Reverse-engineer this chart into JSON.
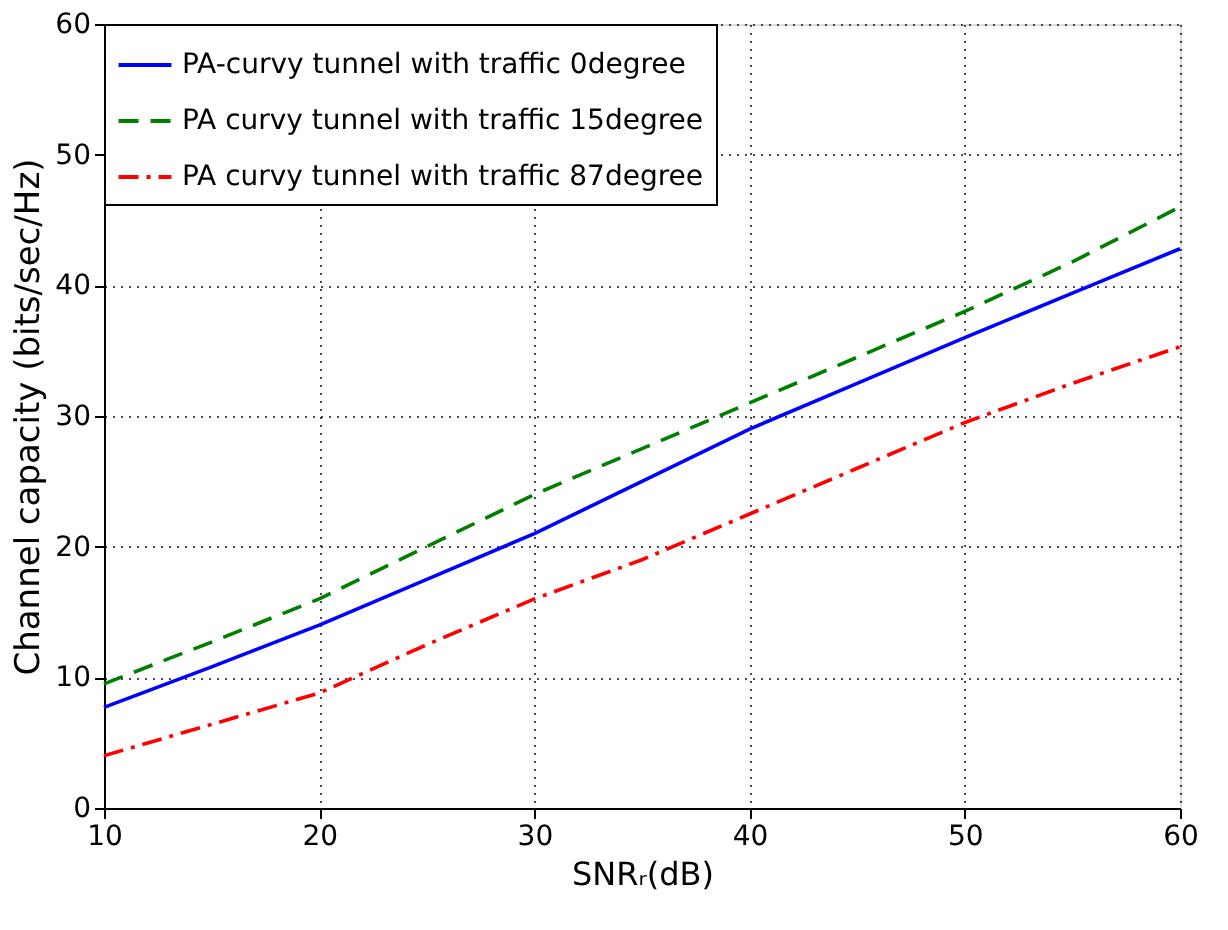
{
  "chart_data": {
    "type": "line",
    "xlabel": "SNRᵣ(dB)",
    "ylabel": "Channel capacity (bits/sec/Hz)",
    "x": [
      10,
      15,
      20,
      25,
      30,
      35,
      40,
      45,
      50,
      55,
      60
    ],
    "series": [
      {
        "name": "PA-curvy tunnel with traffic   0degree",
        "color": "#0000ff",
        "line_style": "solid",
        "values": [
          7.7,
          10.8,
          14,
          17.5,
          21,
          25,
          29,
          32.5,
          36,
          39.4,
          42.8
        ]
      },
      {
        "name": "PA curvy tunnel with traffic 15degree",
        "color": "#007f00",
        "line_style": "dashed",
        "values": [
          9.5,
          12.7,
          16,
          20,
          24,
          27.5,
          31,
          34.5,
          38,
          41.8,
          46
        ]
      },
      {
        "name": "PA curvy tunnel with traffic 87degree",
        "color": "#ff0000",
        "line_style": "dashdot",
        "values": [
          4,
          6.4,
          8.8,
          12.5,
          16,
          19,
          22.5,
          26,
          29.5,
          32.5,
          35.3
        ]
      }
    ],
    "xlim": [
      10,
      60
    ],
    "xticks": [
      10,
      20,
      30,
      40,
      50,
      60
    ],
    "ylim": [
      0,
      60
    ],
    "yticks": [
      0,
      10,
      20,
      30,
      40,
      50,
      60
    ],
    "grid": true,
    "legend": "top left",
    "marker": "none"
  }
}
